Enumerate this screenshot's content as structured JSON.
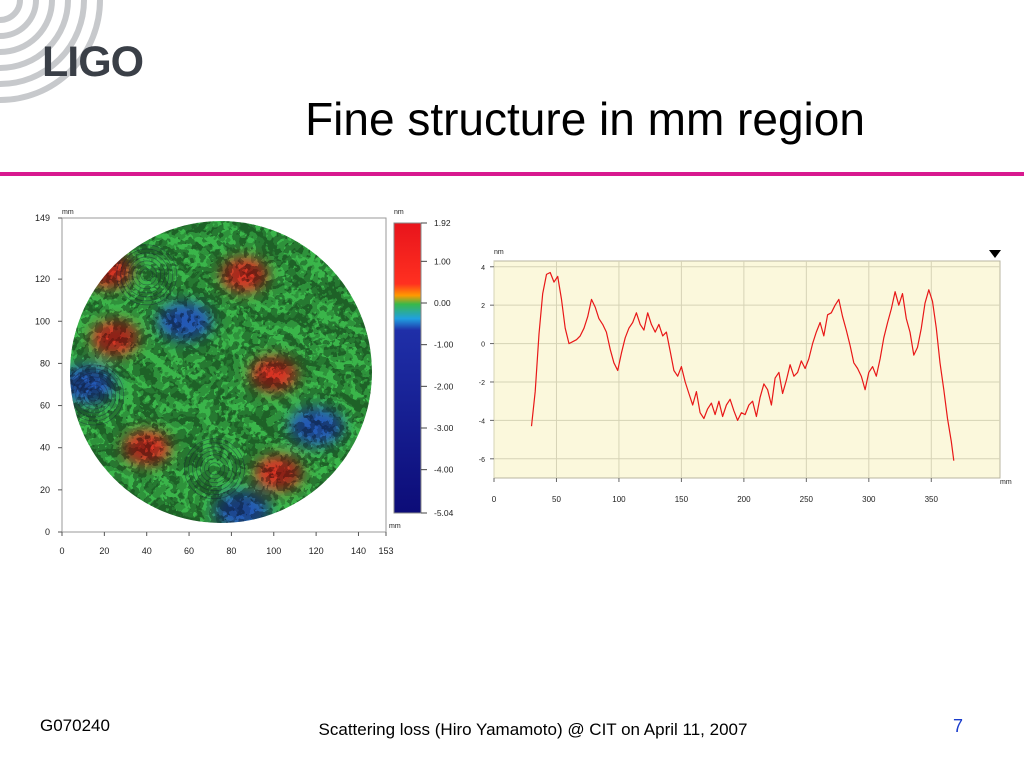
{
  "slide": {
    "logo": "LIGO",
    "title": "Fine structure in mm region",
    "footer_id": "G070240",
    "footer_caption": "Scattering loss (Hiro Yamamoto) @ CIT on April 11, 2007",
    "page_number": "7",
    "accent_color": "#d8198f"
  },
  "chart_data": [
    {
      "type": "heatmap",
      "title": "",
      "x_unit": "mm",
      "y_unit": "mm",
      "xlim": [
        0,
        153
      ],
      "ylim": [
        0,
        149
      ],
      "x_ticks": [
        "0",
        "20",
        "40",
        "60",
        "80",
        "100",
        "120",
        "140",
        "153"
      ],
      "y_ticks": [
        "0",
        "20",
        "40",
        "60",
        "80",
        "100",
        "120",
        "149"
      ],
      "colorbar": {
        "unit": "nm",
        "ticks": [
          "1.92",
          "1.00",
          "0.00",
          "-1.00",
          "-2.00",
          "-3.00",
          "-4.00",
          "-5.04"
        ],
        "range": [
          -5.04,
          1.92
        ],
        "colors": [
          "#e8141c",
          "#ff7a00",
          "#38b84a",
          "#20a0e0",
          "#1f2fa8",
          "#0c0c78"
        ]
      },
      "map_shape": "circular aperture",
      "high_regions_mm": [
        {
          "x": 22,
          "y": 124,
          "level": "high"
        },
        {
          "x": 100,
          "y": 75,
          "level": "high"
        },
        {
          "x": 102,
          "y": 28,
          "level": "high"
        },
        {
          "x": 25,
          "y": 92,
          "level": "high"
        },
        {
          "x": 40,
          "y": 40,
          "level": "high"
        },
        {
          "x": 86,
          "y": 122,
          "level": "high"
        }
      ],
      "low_regions_mm": [
        {
          "x": 120,
          "y": 50,
          "level": "low"
        },
        {
          "x": 85,
          "y": 10,
          "level": "low"
        },
        {
          "x": 58,
          "y": 100,
          "level": "low"
        },
        {
          "x": 12,
          "y": 70,
          "level": "low"
        }
      ]
    },
    {
      "type": "line",
      "title": "",
      "x_unit": "mm",
      "y_unit": "nm",
      "xlim": [
        0,
        405
      ],
      "ylim": [
        -7,
        4.3
      ],
      "x_ticks": [
        "0",
        "50",
        "100",
        "150",
        "200",
        "250",
        "300",
        "350"
      ],
      "y_ticks": [
        "4",
        "2",
        "0",
        "-2",
        "-4",
        "-6"
      ],
      "background": "#fbf8dc",
      "line_color": "#e81818",
      "series": [
        {
          "x": [
            30,
            33,
            36,
            39,
            42,
            45,
            48,
            51,
            54,
            57,
            60,
            63,
            66,
            69,
            72,
            75,
            78,
            81,
            84,
            87,
            90,
            93,
            96,
            99,
            102,
            105,
            108,
            111,
            114,
            117,
            120,
            123,
            126,
            129,
            132,
            135,
            138,
            141,
            144,
            147,
            150,
            153,
            156,
            159,
            162,
            165,
            168,
            171,
            174,
            177,
            180,
            183,
            186,
            189,
            192,
            195,
            198,
            201,
            204,
            207,
            210,
            213,
            216,
            219,
            222,
            225,
            228,
            231,
            234,
            237,
            240,
            243,
            246,
            249,
            252,
            255,
            258,
            261,
            264,
            267,
            270,
            273,
            276,
            279,
            282,
            285,
            288,
            291,
            294,
            297,
            300,
            303,
            306,
            309,
            312,
            315,
            318,
            321,
            324,
            327,
            330,
            333,
            336,
            339,
            342,
            345,
            348,
            351,
            354,
            357,
            360,
            363,
            366,
            368
          ],
          "y": [
            -4.3,
            -2.5,
            0.5,
            2.6,
            3.6,
            3.7,
            3.2,
            3.5,
            2.3,
            0.8,
            0.0,
            0.1,
            0.2,
            0.4,
            0.8,
            1.4,
            2.3,
            1.9,
            1.3,
            1.0,
            0.6,
            -0.3,
            -1.0,
            -1.4,
            -0.5,
            0.3,
            0.8,
            1.1,
            1.6,
            1.0,
            0.7,
            1.6,
            1.0,
            0.6,
            1.0,
            0.4,
            0.6,
            -0.4,
            -1.4,
            -1.7,
            -1.2,
            -2.0,
            -2.6,
            -3.2,
            -2.5,
            -3.6,
            -3.9,
            -3.4,
            -3.1,
            -3.7,
            -3.0,
            -3.8,
            -3.2,
            -2.9,
            -3.5,
            -4.0,
            -3.6,
            -3.7,
            -3.2,
            -3.0,
            -3.8,
            -2.8,
            -2.1,
            -2.4,
            -3.2,
            -1.8,
            -1.5,
            -2.6,
            -1.9,
            -1.1,
            -1.7,
            -1.5,
            -0.9,
            -1.3,
            -0.8,
            0.0,
            0.6,
            1.1,
            0.4,
            1.5,
            1.6,
            2.0,
            2.3,
            1.4,
            0.7,
            -0.1,
            -1.0,
            -1.3,
            -1.7,
            -2.4,
            -1.5,
            -1.2,
            -1.7,
            -0.8,
            0.3,
            1.1,
            1.8,
            2.7,
            2.0,
            2.6,
            1.3,
            0.6,
            -0.6,
            -0.2,
            0.8,
            2.1,
            2.8,
            2.2,
            0.8,
            -1.0,
            -2.4,
            -3.9,
            -5.1,
            -6.1
          ]
        }
      ]
    }
  ]
}
